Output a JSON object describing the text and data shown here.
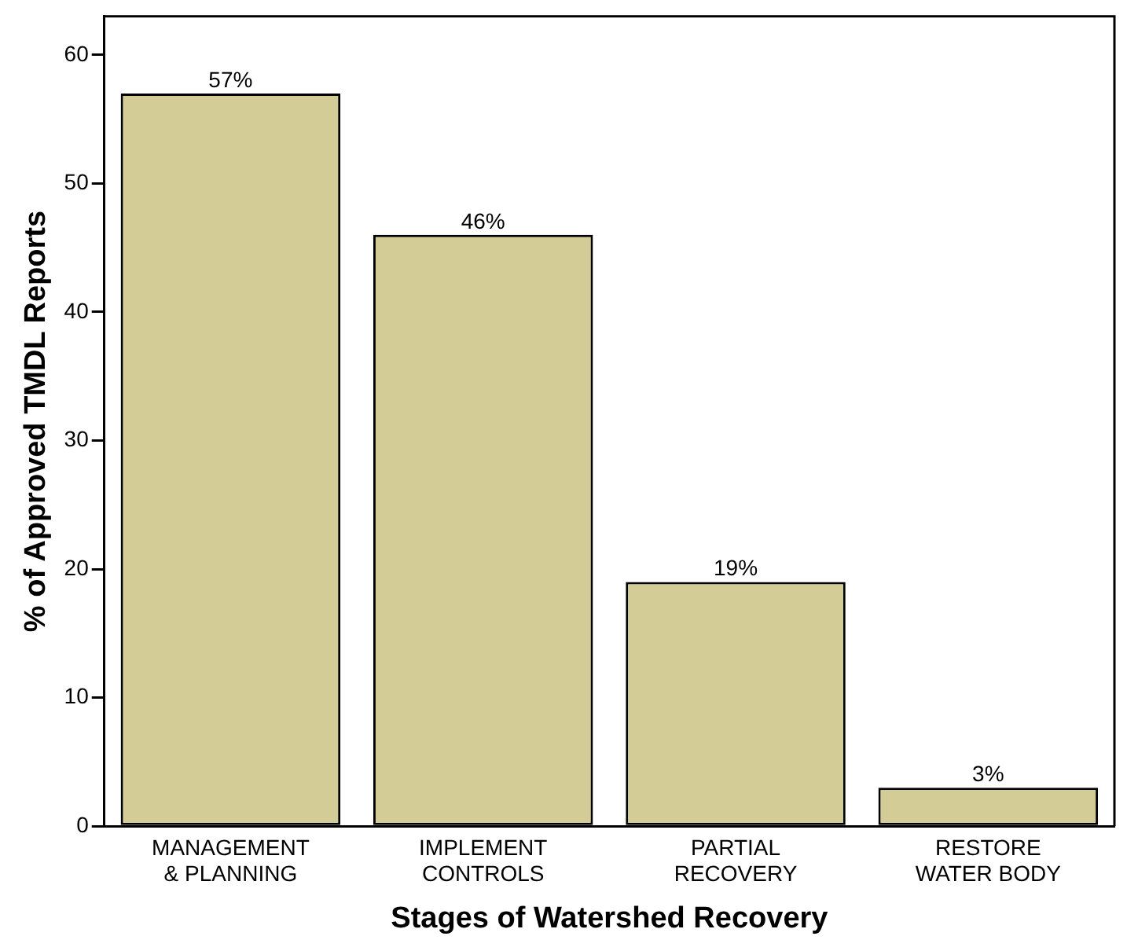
{
  "chart_data": {
    "type": "bar",
    "xlabel": "Stages of Watershed Recovery",
    "ylabel": "% of Approved TMDL Reports",
    "categories": [
      "MANAGEMENT\n& PLANNING",
      "IMPLEMENT\nCONTROLS",
      "PARTIAL\nRECOVERY",
      "RESTORE\nWATER BODY"
    ],
    "values": [
      57,
      46,
      19,
      3
    ],
    "value_labels": [
      "57%",
      "46%",
      "19%",
      "3%"
    ],
    "color": "#d4cc96",
    "ylim": [
      0,
      63
    ],
    "yticks": [
      0,
      10,
      20,
      30,
      40,
      50,
      60
    ],
    "grid": false,
    "legend": false
  }
}
